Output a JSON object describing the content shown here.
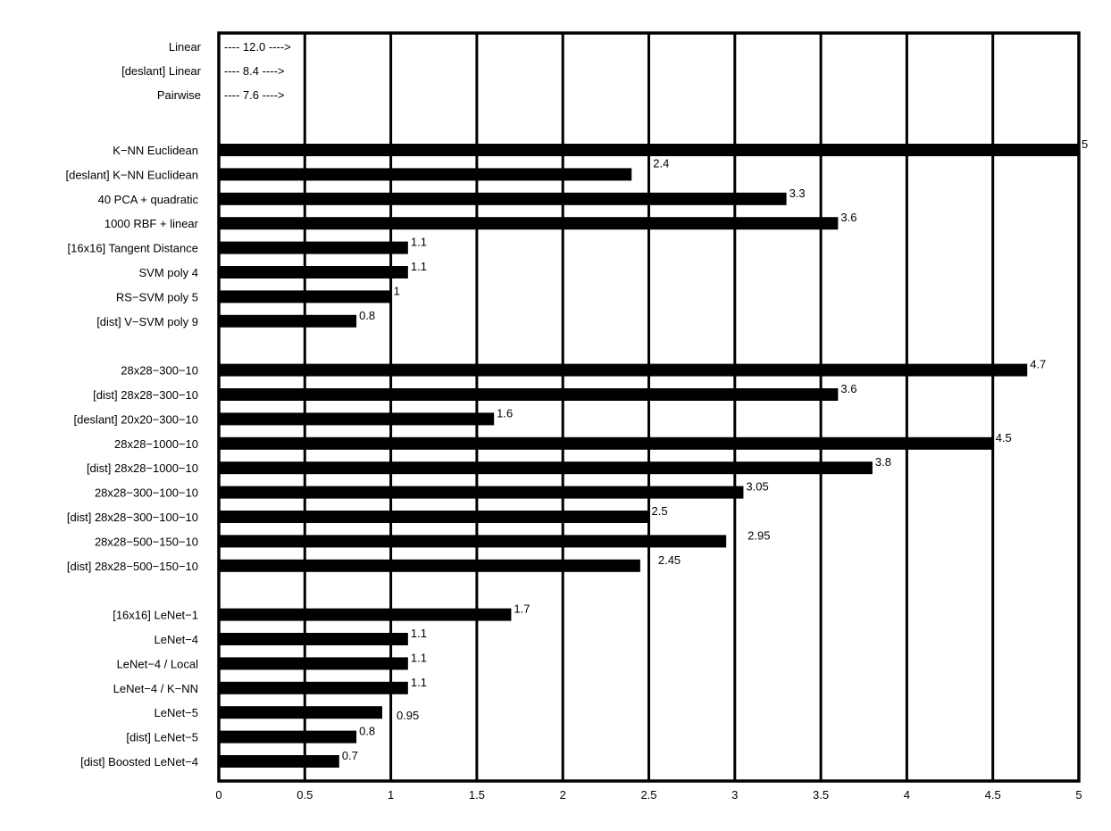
{
  "chart_data": {
    "type": "bar",
    "orientation": "horizontal",
    "title": "",
    "xlabel": "",
    "ylabel": "",
    "xlim": [
      0,
      5
    ],
    "x_ticks": [
      "0",
      "0.5",
      "1",
      "1.5",
      "2",
      "2.5",
      "3",
      "3.5",
      "4",
      "4.5",
      "5"
    ],
    "grid": "vertical",
    "bar_color": "#000000",
    "offscale_rows": [
      {
        "label": "Linear",
        "value": 12.0,
        "text": "---- 12.0 ---->"
      },
      {
        "label": "[deslant] Linear",
        "value": 8.4,
        "text": "---- 8.4 ---->"
      },
      {
        "label": "Pairwise",
        "value": 7.6,
        "text": "---- 7.6 ---->"
      }
    ],
    "groups": [
      [
        {
          "label": "K−NN Euclidean",
          "value": 5,
          "text": "5"
        },
        {
          "label": "[deslant] K−NN Euclidean",
          "value": 2.4,
          "text": "2.4"
        },
        {
          "label": "40 PCA + quadratic",
          "value": 3.3,
          "text": "3.3"
        },
        {
          "label": "1000 RBF + linear",
          "value": 3.6,
          "text": "3.6"
        },
        {
          "label": "[16x16] Tangent Distance",
          "value": 1.1,
          "text": "1.1"
        },
        {
          "label": "SVM poly 4",
          "value": 1.1,
          "text": "1.1"
        },
        {
          "label": "RS−SVM poly 5",
          "value": 1,
          "text": "1"
        },
        {
          "label": "[dist] V−SVM poly 9",
          "value": 0.8,
          "text": "0.8"
        }
      ],
      [
        {
          "label": "28x28−300−10",
          "value": 4.7,
          "text": "4.7"
        },
        {
          "label": "[dist] 28x28−300−10",
          "value": 3.6,
          "text": "3.6"
        },
        {
          "label": "[deslant] 20x20−300−10",
          "value": 1.6,
          "text": "1.6"
        },
        {
          "label": "28x28−1000−10",
          "value": 4.5,
          "text": "4.5"
        },
        {
          "label": "[dist] 28x28−1000−10",
          "value": 3.8,
          "text": "3.8"
        },
        {
          "label": "28x28−300−100−10",
          "value": 3.05,
          "text": "3.05"
        },
        {
          "label": "[dist] 28x28−300−100−10",
          "value": 2.5,
          "text": "2.5"
        },
        {
          "label": "28x28−500−150−10",
          "value": 2.95,
          "text": "2.95"
        },
        {
          "label": "[dist] 28x28−500−150−10",
          "value": 2.45,
          "text": "2.45"
        }
      ],
      [
        {
          "label": "[16x16] LeNet−1",
          "value": 1.7,
          "text": "1.7"
        },
        {
          "label": "LeNet−4",
          "value": 1.1,
          "text": "1.1"
        },
        {
          "label": "LeNet−4 / Local",
          "value": 1.1,
          "text": "1.1"
        },
        {
          "label": "LeNet−4 / K−NN",
          "value": 1.1,
          "text": "1.1"
        },
        {
          "label": "LeNet−5",
          "value": 0.95,
          "text": "0.95"
        },
        {
          "label": "[dist] LeNet−5",
          "value": 0.8,
          "text": "0.8"
        },
        {
          "label": "[dist] Boosted LeNet−4",
          "value": 0.7,
          "text": "0.7"
        }
      ]
    ]
  }
}
